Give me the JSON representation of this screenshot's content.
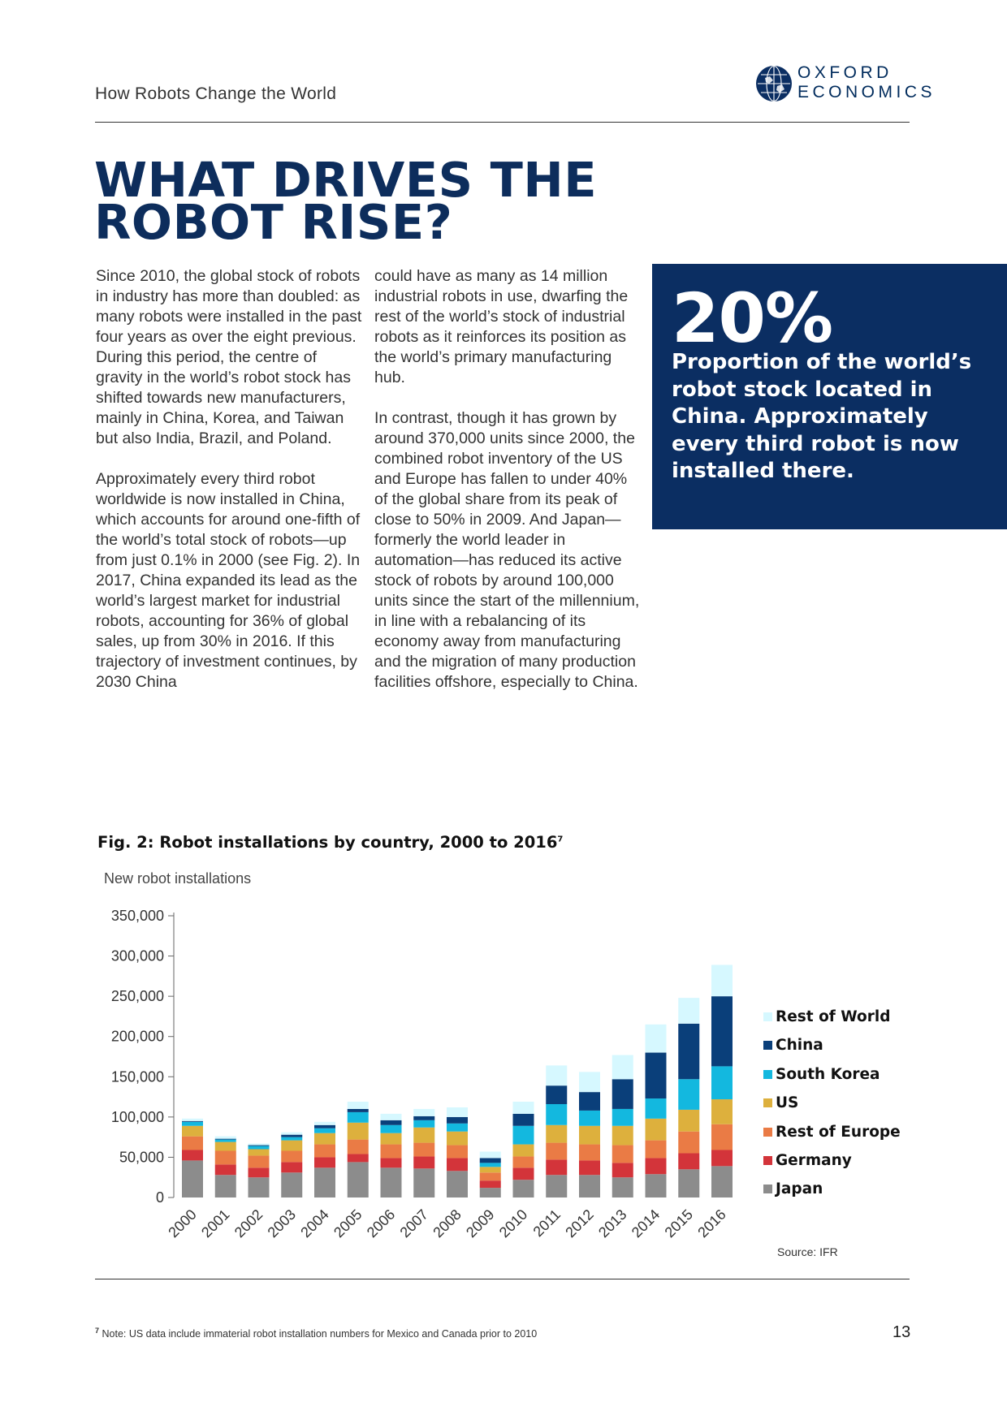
{
  "header": {
    "title": "How Robots Change the World",
    "logo_line1": "OXFORD",
    "logo_line2": "ECONOMICS"
  },
  "headline": {
    "line1": "WHAT DRIVES THE",
    "line2": "ROBOT RISE?"
  },
  "body": {
    "col1_p1": "Since 2010, the global stock of robots in industry has more than doubled: as many robots were installed in the past four years as over the eight previous. During this period, the centre of gravity in the world’s robot stock has shifted towards new manufacturers, mainly in China, Korea, and Taiwan but also India, Brazil, and Poland.",
    "col1_p2": "Approximately every third robot worldwide is now installed in China, which accounts for around one-fifth of the world’s total stock of robots—up from just 0.1% in 2000 (see Fig. 2). In 2017, China expanded its lead as the world’s largest market for industrial robots, accounting for 36% of global sales, up from 30% in 2016. If this trajectory of investment continues, by 2030 China",
    "col2_p1": "could have as many as 14 million industrial robots in use, dwarfing the rest of the world’s stock of industrial robots as it reinforces its position as the world’s primary manufacturing hub.",
    "col2_p2": "In contrast, though it has grown by around 370,000 units since 2000, the combined robot inventory of the US and Europe has fallen to under 40% of the global share from its peak of close to 50% in 2009. And Japan—formerly the world leader in automation—has reduced its active stock of robots by around 100,000 units since the start of the millennium, in line with a rebalancing of its economy away from manufacturing and the migration of many production facilities offshore, especially to China."
  },
  "callout": {
    "figure": "20%",
    "text": "Proportion of the world’s robot stock located in China. Approximately every third robot is now installed there."
  },
  "figure": {
    "title": "Fig. 2: Robot installations by country, 2000 to 2016",
    "footnote_marker": "7"
  },
  "chart_data": {
    "type": "bar",
    "stacked": true,
    "title": "Fig. 2: Robot installations by country, 2000 to 2016",
    "ylabel": "New robot installations",
    "xlabel": "",
    "ylim": [
      0,
      350000
    ],
    "yticks": [
      0,
      50000,
      100000,
      150000,
      200000,
      250000,
      300000,
      350000
    ],
    "ytick_labels": [
      "0",
      "50,000",
      "100,000",
      "150,000",
      "200,000",
      "250,000",
      "300,000",
      "350,000"
    ],
    "categories": [
      "2000",
      "2001",
      "2002",
      "2003",
      "2004",
      "2005",
      "2006",
      "2007",
      "2008",
      "2009",
      "2010",
      "2011",
      "2012",
      "2013",
      "2014",
      "2015",
      "2016"
    ],
    "series": [
      {
        "name": "Japan",
        "color": "#8c8c8c",
        "values": [
          46000,
          28000,
          25000,
          31000,
          37000,
          44000,
          37000,
          36000,
          33000,
          12000,
          22000,
          28000,
          28000,
          25000,
          29000,
          35000,
          39000
        ]
      },
      {
        "name": "Germany",
        "color": "#d3343a",
        "values": [
          13000,
          13000,
          12000,
          13000,
          13000,
          10000,
          12000,
          15000,
          16000,
          9000,
          15000,
          19000,
          18000,
          18000,
          20000,
          20000,
          20000
        ]
      },
      {
        "name": "Rest of Europe",
        "color": "#ea7b45",
        "values": [
          17000,
          17000,
          15000,
          14000,
          16000,
          18000,
          17000,
          17000,
          16000,
          10000,
          14000,
          21000,
          20000,
          22000,
          22000,
          27000,
          32000
        ]
      },
      {
        "name": "US",
        "color": "#ddb03d",
        "values": [
          13000,
          11000,
          8000,
          13000,
          14000,
          21000,
          14000,
          19000,
          17000,
          7000,
          15000,
          22000,
          23000,
          24000,
          27000,
          27000,
          31000
        ]
      },
      {
        "name": "South Korea",
        "color": "#13b8df",
        "values": [
          5000,
          3000,
          4000,
          4000,
          6000,
          13000,
          10000,
          9000,
          10000,
          5000,
          23000,
          26000,
          19000,
          21000,
          25000,
          38000,
          41000
        ]
      },
      {
        "name": "China",
        "color": "#0a3f7a",
        "values": [
          1000,
          1000,
          1000,
          3000,
          4000,
          4000,
          6000,
          5000,
          8000,
          6000,
          15000,
          23000,
          23000,
          37000,
          57000,
          69000,
          87000
        ]
      },
      {
        "name": "Rest of World",
        "color": "#d6f8ff",
        "values": [
          3000,
          3000,
          2000,
          3000,
          4000,
          9000,
          8000,
          9000,
          12000,
          8000,
          15000,
          25000,
          25000,
          30000,
          35000,
          32000,
          39000
        ]
      }
    ],
    "legend_order": [
      "Rest of World",
      "China",
      "South Korea",
      "US",
      "Rest of Europe",
      "Germany",
      "Japan"
    ],
    "legend_position": "right",
    "source": "Source: IFR"
  },
  "footnote": {
    "marker": "7",
    "text": "Note: US data include immaterial robot installation numbers for Mexico and Canada prior to 2010"
  },
  "page_number": "13"
}
